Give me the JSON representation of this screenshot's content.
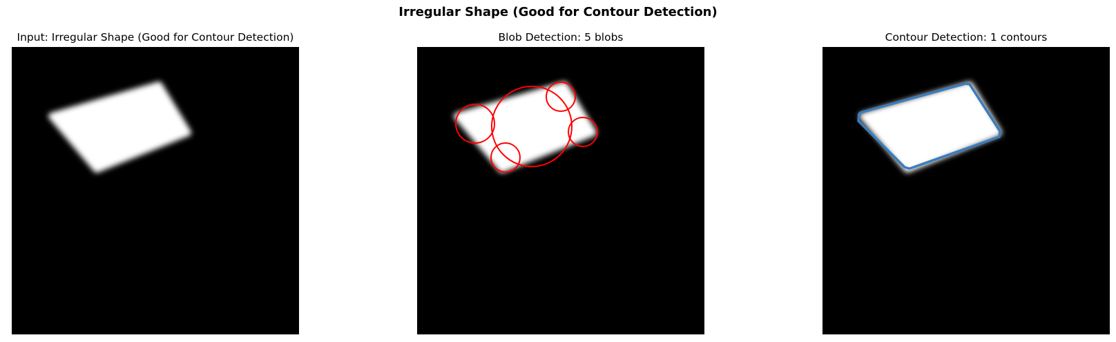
{
  "figure": {
    "title": "Irregular Shape (Good for Contour Detection)",
    "background_color": "#ffffff",
    "image_background_color": "#000000",
    "shape_color": "#ffffff"
  },
  "panels": [
    {
      "title": "Input: Irregular Shape (Good for Contour Detection)",
      "overlay": "none"
    },
    {
      "title": "Blob Detection: 5 blobs",
      "overlay": "blob-circles",
      "overlay_color": "#ff0000",
      "blob_count": 5
    },
    {
      "title": "Contour Detection: 1 contours",
      "overlay": "contour-outline",
      "overlay_color": "#3b7dbf",
      "contour_count": 1
    }
  ]
}
